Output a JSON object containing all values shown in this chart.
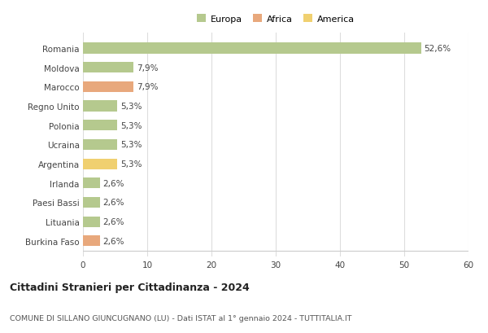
{
  "countries": [
    "Romania",
    "Moldova",
    "Marocco",
    "Regno Unito",
    "Polonia",
    "Ucraina",
    "Argentina",
    "Irlanda",
    "Paesi Bassi",
    "Lituania",
    "Burkina Faso"
  ],
  "values": [
    52.6,
    7.9,
    7.9,
    5.3,
    5.3,
    5.3,
    5.3,
    2.6,
    2.6,
    2.6,
    2.6
  ],
  "labels": [
    "52,6%",
    "7,9%",
    "7,9%",
    "5,3%",
    "5,3%",
    "5,3%",
    "5,3%",
    "2,6%",
    "2,6%",
    "2,6%",
    "2,6%"
  ],
  "colors": [
    "#b5c98e",
    "#b5c98e",
    "#e8a87c",
    "#b5c98e",
    "#b5c98e",
    "#b5c98e",
    "#f0d070",
    "#b5c98e",
    "#b5c98e",
    "#b5c98e",
    "#e8a87c"
  ],
  "legend": [
    {
      "label": "Europa",
      "color": "#b5c98e"
    },
    {
      "label": "Africa",
      "color": "#e8a87c"
    },
    {
      "label": "America",
      "color": "#f0d070"
    }
  ],
  "xlim": [
    0,
    60
  ],
  "xticks": [
    0,
    10,
    20,
    30,
    40,
    50,
    60
  ],
  "title": "Cittadini Stranieri per Cittadinanza - 2024",
  "subtitle": "COMUNE DI SILLANO GIUNCUGNANO (LU) - Dati ISTAT al 1° gennaio 2024 - TUTTITALIA.IT",
  "background_color": "#ffffff",
  "grid_color": "#dddddd",
  "bar_height": 0.55
}
